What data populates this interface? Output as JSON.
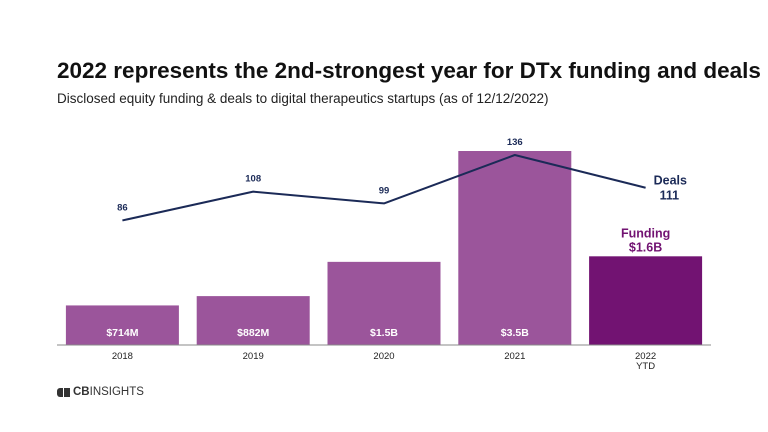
{
  "title": "2022 represents the 2nd-strongest year for DTx funding and deals",
  "subtitle": "Disclosed equity funding & deals to digital therapeutics startups (as of 12/12/2022)",
  "brand": {
    "prefix": "CB",
    "suffix": "INSIGHTS",
    "icon": "cb-insights-logo-icon"
  },
  "colors": {
    "bar": "#9b559b",
    "bar_highlight": "#721372",
    "line": "#1b2a57",
    "funding_label": "#721372"
  },
  "chart_data": {
    "type": "bar",
    "title": "2022 represents the 2nd-strongest year for DTx funding and deals",
    "subtitle": "Disclosed equity funding & deals to digital therapeutics startups (as of 12/12/2022)",
    "categories": [
      "2018",
      "2019",
      "2020",
      "2021",
      "2022 YTD"
    ],
    "category_lines": [
      [
        "2018"
      ],
      [
        "2019"
      ],
      [
        "2020"
      ],
      [
        "2021"
      ],
      [
        "2022",
        "YTD"
      ]
    ],
    "series": [
      {
        "name": "Funding",
        "type": "bar",
        "unit": "$B",
        "values": [
          0.714,
          0.882,
          1.5,
          3.5,
          1.6
        ],
        "labels": [
          "$714M",
          "$882M",
          "$1.5B",
          "$3.5B",
          "$1.6B"
        ],
        "highlight_index": 4,
        "series_label": "Funding"
      },
      {
        "name": "Deals",
        "type": "line",
        "values": [
          86,
          108,
          99,
          136,
          111
        ],
        "labels": [
          "86",
          "108",
          "99",
          "136",
          "111"
        ],
        "series_label": "Deals"
      }
    ],
    "funding_range": [
      0,
      3.5
    ],
    "deals_range": [
      0,
      136
    ],
    "grid": false,
    "legend": "inline"
  }
}
